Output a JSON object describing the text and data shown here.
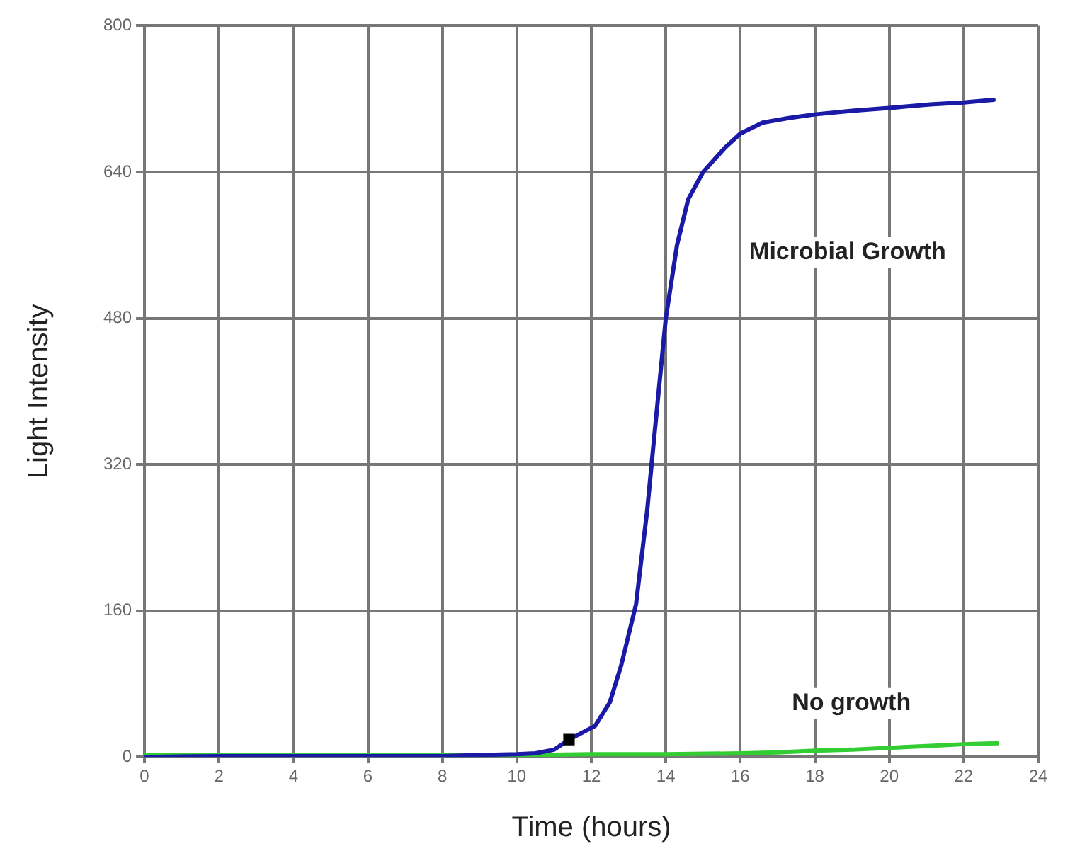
{
  "chart_data": {
    "type": "line",
    "xlabel": "Time (hours)",
    "ylabel": "Light Intensity",
    "xlim": [
      0,
      24
    ],
    "xticks": [
      0,
      2,
      4,
      6,
      8,
      10,
      12,
      14,
      16,
      18,
      20,
      22,
      24
    ],
    "ylim": [
      0,
      800
    ],
    "yticks": [
      0,
      160,
      320,
      480,
      640,
      800
    ],
    "grid": true,
    "legend": false,
    "marker": "none",
    "line_style": "solid",
    "series": [
      {
        "name": "Microbial Growth",
        "color": "#1a1aa6",
        "x": [
          0,
          2,
          4,
          6,
          8,
          9,
          10,
          10.5,
          11,
          11.4,
          12.1,
          12.5,
          12.8,
          13.2,
          13.5,
          13.7,
          14,
          14.3,
          14.6,
          15,
          15.6,
          16,
          16.6,
          17.3,
          18,
          19,
          20,
          21.1,
          22,
          22.8
        ],
        "values": [
          0,
          1,
          1,
          1,
          1,
          2,
          3,
          4,
          8,
          19,
          34,
          60,
          100,
          167,
          270,
          355,
          480,
          560,
          610,
          640,
          667,
          682,
          694,
          699,
          703,
          707,
          710,
          714,
          716,
          719
        ]
      },
      {
        "name": "No growth",
        "color": "#33cc33",
        "x": [
          0,
          2,
          4,
          6,
          8,
          10,
          12,
          14,
          16,
          17,
          18,
          19,
          20,
          21,
          22,
          22.9
        ],
        "values": [
          2,
          2,
          2,
          2,
          2,
          2,
          3,
          3,
          4,
          5,
          7,
          8,
          10,
          12,
          14,
          15
        ]
      },
      {
        "type": "scatter",
        "marker": "square",
        "color": "#000000",
        "x": [
          11.4
        ],
        "values": [
          19
        ]
      }
    ]
  }
}
